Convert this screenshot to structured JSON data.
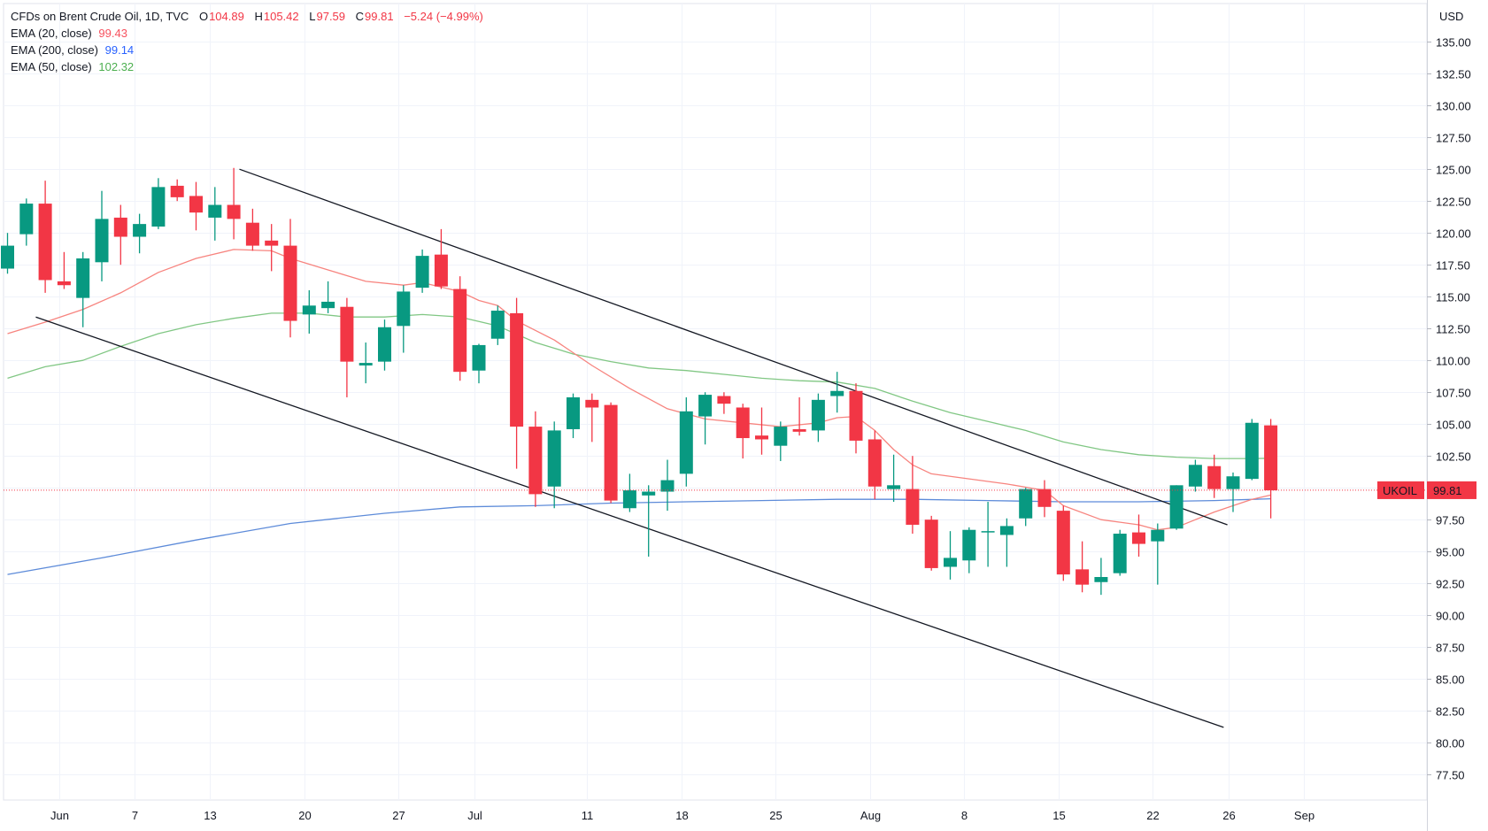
{
  "header": {
    "symbol_title": "CFDs on Brent Crude Oil, 1D, TVC",
    "ohlc": [
      {
        "k": "O",
        "v": "104.89"
      },
      {
        "k": "H",
        "v": "105.42"
      },
      {
        "k": "L",
        "v": "97.59"
      },
      {
        "k": "C",
        "v": "99.81"
      }
    ],
    "change": "−5.24 (−4.99%)"
  },
  "indicators": [
    {
      "label": "EMA (20, close)",
      "value": "99.43",
      "color": "#f7525f"
    },
    {
      "label": "EMA (200, close)",
      "value": "99.14",
      "color": "#2962ff"
    },
    {
      "label": "EMA (50, close)",
      "value": "102.32",
      "color": "#4caf50"
    }
  ],
  "currency": "USD",
  "price_badge": {
    "symbol": "UKOIL",
    "price": "99.81"
  },
  "chart_data": {
    "type": "candlestick",
    "ylim": [
      75.5,
      138
    ],
    "y_ticks": [
      77.5,
      80,
      82.5,
      85,
      87.5,
      90,
      92.5,
      95,
      97.5,
      100,
      102.5,
      105,
      107.5,
      110,
      112.5,
      115,
      117.5,
      120,
      122.5,
      125,
      127.5,
      130,
      132.5,
      135
    ],
    "x_ticks": [
      {
        "label": "Jun",
        "at": 2.75
      },
      {
        "label": "7",
        "at": 6.75
      },
      {
        "label": "13",
        "at": 10.75
      },
      {
        "label": "20",
        "at": 15.75
      },
      {
        "label": "27",
        "at": 20.75
      },
      {
        "label": "Jul",
        "at": 24.75
      },
      {
        "label": "11",
        "at": 30.75
      },
      {
        "label": "18",
        "at": 35.75
      },
      {
        "label": "25",
        "at": 40.75
      },
      {
        "label": "Aug",
        "at": 45.75
      },
      {
        "label": "8",
        "at": 50.75
      },
      {
        "label": "15",
        "at": 55.75
      },
      {
        "label": "22",
        "at": 60.75
      },
      {
        "label": "26",
        "at": 64.75
      },
      {
        "label": "Sep",
        "at": 68.75
      }
    ],
    "candles": [
      {
        "o": 117.2,
        "h": 120.0,
        "l": 116.8,
        "c": 119.0
      },
      {
        "o": 119.9,
        "h": 122.7,
        "l": 119.0,
        "c": 122.3
      },
      {
        "o": 122.3,
        "h": 124.1,
        "l": 115.3,
        "c": 116.3
      },
      {
        "o": 116.2,
        "h": 118.5,
        "l": 115.6,
        "c": 115.9
      },
      {
        "o": 114.9,
        "h": 118.5,
        "l": 112.6,
        "c": 118.0
      },
      {
        "o": 117.7,
        "h": 123.3,
        "l": 116.2,
        "c": 121.1
      },
      {
        "o": 121.2,
        "h": 122.2,
        "l": 117.5,
        "c": 119.7
      },
      {
        "o": 119.7,
        "h": 121.5,
        "l": 118.4,
        "c": 120.7
      },
      {
        "o": 120.5,
        "h": 124.3,
        "l": 120.3,
        "c": 123.6
      },
      {
        "o": 123.7,
        "h": 124.2,
        "l": 122.5,
        "c": 122.8
      },
      {
        "o": 122.9,
        "h": 124.0,
        "l": 120.2,
        "c": 121.6
      },
      {
        "o": 121.2,
        "h": 123.6,
        "l": 119.4,
        "c": 122.2
      },
      {
        "o": 122.2,
        "h": 125.1,
        "l": 119.5,
        "c": 121.1
      },
      {
        "o": 120.8,
        "h": 121.9,
        "l": 118.6,
        "c": 119.0
      },
      {
        "o": 119.4,
        "h": 120.7,
        "l": 117.0,
        "c": 119.0
      },
      {
        "o": 119.0,
        "h": 121.1,
        "l": 111.8,
        "c": 113.1
      },
      {
        "o": 113.6,
        "h": 115.5,
        "l": 112.1,
        "c": 114.3
      },
      {
        "o": 114.1,
        "h": 116.2,
        "l": 113.7,
        "c": 114.6
      },
      {
        "o": 114.2,
        "h": 114.9,
        "l": 107.1,
        "c": 109.9
      },
      {
        "o": 109.6,
        "h": 111.4,
        "l": 108.2,
        "c": 109.8
      },
      {
        "o": 109.9,
        "h": 113.2,
        "l": 109.2,
        "c": 112.6
      },
      {
        "o": 112.7,
        "h": 115.9,
        "l": 110.6,
        "c": 115.4
      },
      {
        "o": 115.7,
        "h": 118.7,
        "l": 115.3,
        "c": 118.2
      },
      {
        "o": 118.3,
        "h": 120.3,
        "l": 115.6,
        "c": 115.8
      },
      {
        "o": 115.6,
        "h": 116.6,
        "l": 108.4,
        "c": 109.1
      },
      {
        "o": 109.2,
        "h": 111.3,
        "l": 108.2,
        "c": 111.2
      },
      {
        "o": 111.7,
        "h": 114.3,
        "l": 111.2,
        "c": 113.9
      },
      {
        "o": 113.7,
        "h": 114.9,
        "l": 101.5,
        "c": 104.8
      },
      {
        "o": 104.8,
        "h": 106.0,
        "l": 98.5,
        "c": 99.5
      },
      {
        "o": 100.1,
        "h": 105.2,
        "l": 98.4,
        "c": 104.5
      },
      {
        "o": 104.6,
        "h": 107.4,
        "l": 103.9,
        "c": 107.1
      },
      {
        "o": 106.9,
        "h": 107.4,
        "l": 103.6,
        "c": 106.3
      },
      {
        "o": 106.5,
        "h": 106.7,
        "l": 98.8,
        "c": 99.0
      },
      {
        "o": 98.4,
        "h": 101.1,
        "l": 98.1,
        "c": 99.8
      },
      {
        "o": 99.4,
        "h": 100.2,
        "l": 94.6,
        "c": 99.7
      },
      {
        "o": 99.7,
        "h": 102.2,
        "l": 98.2,
        "c": 100.6
      },
      {
        "o": 101.1,
        "h": 107.1,
        "l": 100.1,
        "c": 106.0
      },
      {
        "o": 105.6,
        "h": 107.5,
        "l": 103.4,
        "c": 107.3
      },
      {
        "o": 107.2,
        "h": 107.5,
        "l": 105.8,
        "c": 106.6
      },
      {
        "o": 106.3,
        "h": 106.6,
        "l": 102.3,
        "c": 103.9
      },
      {
        "o": 104.1,
        "h": 106.3,
        "l": 102.6,
        "c": 103.8
      },
      {
        "o": 103.3,
        "h": 105.2,
        "l": 102.1,
        "c": 104.8
      },
      {
        "o": 104.6,
        "h": 107.1,
        "l": 104.1,
        "c": 104.4
      },
      {
        "o": 104.5,
        "h": 107.4,
        "l": 103.6,
        "c": 106.9
      },
      {
        "o": 107.2,
        "h": 109.1,
        "l": 105.9,
        "c": 107.6
      },
      {
        "o": 107.6,
        "h": 108.2,
        "l": 102.7,
        "c": 103.7
      },
      {
        "o": 103.8,
        "h": 104.5,
        "l": 99.1,
        "c": 100.1
      },
      {
        "o": 99.9,
        "h": 102.6,
        "l": 98.9,
        "c": 100.2
      },
      {
        "o": 99.9,
        "h": 102.5,
        "l": 96.4,
        "c": 97.1
      },
      {
        "o": 97.5,
        "h": 97.8,
        "l": 93.5,
        "c": 93.7
      },
      {
        "o": 93.8,
        "h": 96.6,
        "l": 92.8,
        "c": 94.5
      },
      {
        "o": 94.3,
        "h": 96.9,
        "l": 93.3,
        "c": 96.7
      },
      {
        "o": 96.5,
        "h": 98.9,
        "l": 93.8,
        "c": 96.6
      },
      {
        "o": 96.3,
        "h": 97.6,
        "l": 93.8,
        "c": 97.0
      },
      {
        "o": 97.6,
        "h": 100.0,
        "l": 97.0,
        "c": 99.9
      },
      {
        "o": 99.9,
        "h": 100.6,
        "l": 97.7,
        "c": 98.5
      },
      {
        "o": 98.2,
        "h": 98.6,
        "l": 92.7,
        "c": 93.2
      },
      {
        "o": 93.6,
        "h": 95.8,
        "l": 91.8,
        "c": 92.4
      },
      {
        "o": 92.6,
        "h": 94.5,
        "l": 91.6,
        "c": 93.0
      },
      {
        "o": 93.3,
        "h": 96.7,
        "l": 93.1,
        "c": 96.4
      },
      {
        "o": 96.5,
        "h": 97.9,
        "l": 94.6,
        "c": 95.6
      },
      {
        "o": 95.8,
        "h": 97.2,
        "l": 92.4,
        "c": 96.7
      },
      {
        "o": 96.8,
        "h": 100.2,
        "l": 96.7,
        "c": 100.2
      },
      {
        "o": 100.1,
        "h": 102.2,
        "l": 99.7,
        "c": 101.8
      },
      {
        "o": 101.7,
        "h": 102.6,
        "l": 99.2,
        "c": 99.9
      },
      {
        "o": 99.9,
        "h": 101.2,
        "l": 98.1,
        "c": 100.9
      },
      {
        "o": 100.7,
        "h": 105.4,
        "l": 100.6,
        "c": 105.1
      },
      {
        "o": 104.9,
        "h": 105.4,
        "l": 97.6,
        "c": 99.8
      }
    ],
    "ema20": [
      [
        0,
        112.1
      ],
      [
        2,
        113.0
      ],
      [
        4,
        114.0
      ],
      [
        6,
        115.3
      ],
      [
        8,
        116.9
      ],
      [
        10,
        118.0
      ],
      [
        12,
        118.7
      ],
      [
        14,
        118.6
      ],
      [
        15,
        118.0
      ],
      [
        17,
        117.1
      ],
      [
        19,
        116.2
      ],
      [
        21,
        115.9
      ],
      [
        22,
        116.1
      ],
      [
        24,
        115.4
      ],
      [
        25,
        114.7
      ],
      [
        26,
        114.3
      ],
      [
        27,
        113.1
      ],
      [
        29,
        111.6
      ],
      [
        31,
        109.6
      ],
      [
        33,
        107.8
      ],
      [
        35,
        106.2
      ],
      [
        37,
        105.4
      ],
      [
        39,
        105.1
      ],
      [
        41,
        104.8
      ],
      [
        43,
        105.1
      ],
      [
        44,
        105.5
      ],
      [
        45,
        105.6
      ],
      [
        46,
        104.5
      ],
      [
        47,
        103.0
      ],
      [
        48,
        101.8
      ],
      [
        49,
        101.1
      ],
      [
        51,
        100.7
      ],
      [
        53,
        100.3
      ],
      [
        55,
        99.8
      ],
      [
        56,
        98.6
      ],
      [
        58,
        97.5
      ],
      [
        60,
        97.1
      ],
      [
        61,
        96.7
      ],
      [
        62,
        96.9
      ],
      [
        64,
        98.1
      ],
      [
        66,
        99.1
      ],
      [
        67,
        99.43
      ]
    ],
    "ema50": [
      [
        0,
        108.6
      ],
      [
        2,
        109.5
      ],
      [
        4,
        110.0
      ],
      [
        6,
        111.1
      ],
      [
        8,
        112.1
      ],
      [
        10,
        112.8
      ],
      [
        12,
        113.3
      ],
      [
        14,
        113.7
      ],
      [
        16,
        113.7
      ],
      [
        18,
        113.4
      ],
      [
        20,
        113.4
      ],
      [
        22,
        113.6
      ],
      [
        24,
        113.4
      ],
      [
        26,
        112.7
      ],
      [
        28,
        111.4
      ],
      [
        30,
        110.5
      ],
      [
        32,
        109.9
      ],
      [
        34,
        109.4
      ],
      [
        36,
        109.2
      ],
      [
        38,
        108.9
      ],
      [
        40,
        108.6
      ],
      [
        42,
        108.4
      ],
      [
        44,
        108.3
      ],
      [
        46,
        107.8
      ],
      [
        48,
        106.8
      ],
      [
        50,
        105.9
      ],
      [
        52,
        105.2
      ],
      [
        54,
        104.5
      ],
      [
        56,
        103.6
      ],
      [
        58,
        103.0
      ],
      [
        60,
        102.6
      ],
      [
        62,
        102.4
      ],
      [
        64,
        102.3
      ],
      [
        66,
        102.3
      ],
      [
        67,
        102.32
      ]
    ],
    "ema200": [
      [
        0,
        93.2
      ],
      [
        5,
        94.5
      ],
      [
        10,
        95.9
      ],
      [
        15,
        97.2
      ],
      [
        20,
        98.0
      ],
      [
        24,
        98.5
      ],
      [
        28,
        98.6
      ],
      [
        32,
        98.8
      ],
      [
        36,
        98.9
      ],
      [
        40,
        99.0
      ],
      [
        44,
        99.1
      ],
      [
        48,
        99.1
      ],
      [
        52,
        99.0
      ],
      [
        56,
        98.9
      ],
      [
        60,
        98.9
      ],
      [
        64,
        99.0
      ],
      [
        67,
        99.14
      ]
    ],
    "trendlines": [
      {
        "from": [
          12.3,
          125.0
        ],
        "to": [
          64.7,
          97.1
        ]
      },
      {
        "from": [
          1.5,
          113.4
        ],
        "to": [
          64.5,
          81.2
        ]
      }
    ],
    "last_price": 99.81
  }
}
